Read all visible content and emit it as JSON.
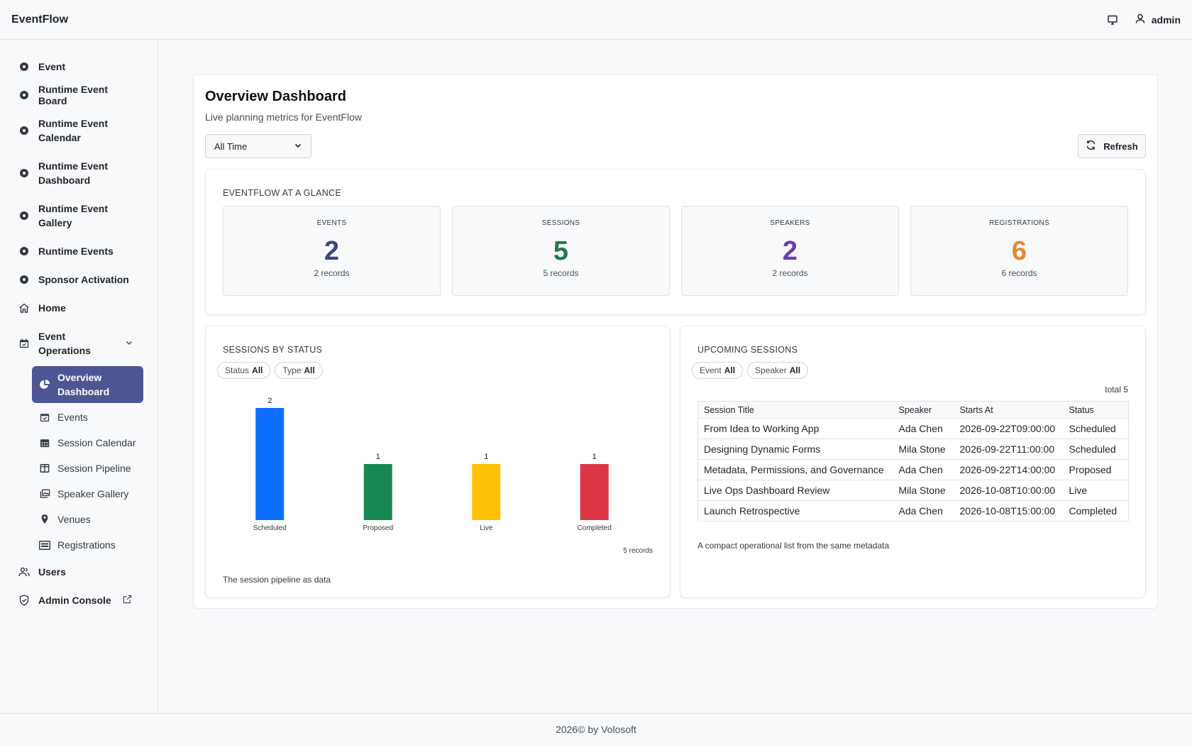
{
  "app": {
    "brand": "EventFlow",
    "user": "admin"
  },
  "sidebar": {
    "items": [
      {
        "label": "Event",
        "icon": "circle-dot-icon"
      },
      {
        "label": "Runtime Event Board",
        "icon": "circle-dot-icon"
      },
      {
        "label": "Runtime Event Calendar",
        "icon": "circle-dot-icon"
      },
      {
        "label": "Runtime Event Dashboard",
        "icon": "circle-dot-icon"
      },
      {
        "label": "Runtime Event Gallery",
        "icon": "circle-dot-icon"
      },
      {
        "label": "Runtime Events",
        "icon": "circle-dot-icon"
      },
      {
        "label": "Sponsor Activation",
        "icon": "circle-dot-icon"
      },
      {
        "label": "Home",
        "icon": "home-icon"
      }
    ],
    "group": {
      "label": "Event Operations",
      "icon": "calendar-check-icon",
      "children": [
        {
          "label": "Overview Dashboard",
          "icon": "pie-chart-icon",
          "active": true
        },
        {
          "label": "Events",
          "icon": "calendar-check-icon"
        },
        {
          "label": "Session Calendar",
          "icon": "calendar-grid-icon"
        },
        {
          "label": "Session Pipeline",
          "icon": "columns-icon"
        },
        {
          "label": "Speaker Gallery",
          "icon": "images-icon"
        },
        {
          "label": "Venues",
          "icon": "map-pin-icon"
        },
        {
          "label": "Registrations",
          "icon": "card-icon"
        }
      ]
    },
    "bottom": [
      {
        "label": "Users",
        "icon": "users-icon"
      },
      {
        "label": "Admin Console",
        "icon": "shield-icon",
        "external_icon": "external-link-icon"
      }
    ]
  },
  "page": {
    "title": "Overview Dashboard",
    "subtitle": "Live planning metrics for EventFlow",
    "range_select": "All Time",
    "refresh_label": "Refresh"
  },
  "glance": {
    "title": "EVENTFLOW AT A GLANCE",
    "stats": [
      {
        "label": "EVENTS",
        "value": "2",
        "records": "2 records",
        "color": "#3d4685"
      },
      {
        "label": "SESSIONS",
        "value": "5",
        "records": "5 records",
        "color": "#1d7a4d"
      },
      {
        "label": "SPEAKERS",
        "value": "2",
        "records": "2 records",
        "color": "#6a3cb5"
      },
      {
        "label": "REGISTRATIONS",
        "value": "6",
        "records": "6 records",
        "color": "#e8872a"
      }
    ]
  },
  "sessions_by_status": {
    "title": "SESSIONS BY STATUS",
    "filters": [
      {
        "key": "Status",
        "value": "All"
      },
      {
        "key": "Type",
        "value": "All"
      }
    ],
    "records_note": "5 records",
    "footer": "The session pipeline as data"
  },
  "chart_data": {
    "type": "bar",
    "categories": [
      "Scheduled",
      "Proposed",
      "Live",
      "Completed"
    ],
    "values": [
      2,
      1,
      1,
      1
    ],
    "colors": [
      "#0d6efd",
      "#198754",
      "#ffc107",
      "#dc3545"
    ],
    "ylim": [
      0,
      2
    ]
  },
  "upcoming": {
    "title": "UPCOMING SESSIONS",
    "filters": [
      {
        "key": "Event",
        "value": "All"
      },
      {
        "key": "Speaker",
        "value": "All"
      }
    ],
    "total": "total 5",
    "columns": [
      "Session Title",
      "Speaker",
      "Starts At",
      "Status"
    ],
    "rows": [
      [
        "From Idea to Working App",
        "Ada Chen",
        "2026-09-22T09:00:00",
        "Scheduled"
      ],
      [
        "Designing Dynamic Forms",
        "Mila Stone",
        "2026-09-22T11:00:00",
        "Scheduled"
      ],
      [
        "Metadata, Permissions, and Governance",
        "Ada Chen",
        "2026-09-22T14:00:00",
        "Proposed"
      ],
      [
        "Live Ops Dashboard Review",
        "Mila Stone",
        "2026-10-08T10:00:00",
        "Live"
      ],
      [
        "Launch Retrospective",
        "Ada Chen",
        "2026-10-08T15:00:00",
        "Completed"
      ]
    ],
    "footer": "A compact operational list from the same metadata"
  },
  "footer": {
    "text": "2026© by Volosoft"
  }
}
